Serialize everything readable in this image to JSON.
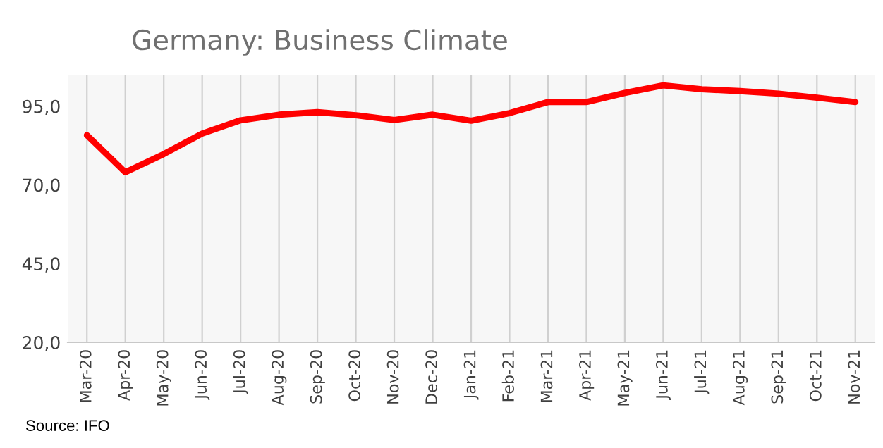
{
  "chart_data": {
    "type": "line",
    "title": "Germany: Business Climate",
    "categories": [
      "Mar-20",
      "Apr-20",
      "May-20",
      "Jun-20",
      "Jul-20",
      "Aug-20",
      "Sep-20",
      "Oct-20",
      "Nov-20",
      "Dec-20",
      "Jan-21",
      "Feb-21",
      "Mar-21",
      "Apr-21",
      "May-21",
      "Jun-21",
      "Jul-21",
      "Aug-21",
      "Sep-21",
      "Oct-21",
      "Nov-21"
    ],
    "series": [
      {
        "color": "#ff0000",
        "values": [
          85.8,
          74.0,
          79.8,
          86.3,
          90.5,
          92.3,
          93.1,
          92.1,
          90.6,
          92.3,
          90.4,
          92.8,
          96.3,
          96.3,
          99.2,
          101.6,
          100.4,
          99.8,
          99.0,
          97.7,
          96.3
        ]
      }
    ],
    "ylim": [
      20,
      105
    ],
    "yticks": [
      {
        "value": 20,
        "label": "20,0"
      },
      {
        "value": 45,
        "label": "45,0"
      },
      {
        "value": 70,
        "label": "70,0"
      },
      {
        "value": 95,
        "label": "95,0"
      }
    ],
    "grid": "x",
    "marker": "none",
    "line_style": "solid",
    "annotations": [
      "Source: IFO"
    ]
  }
}
